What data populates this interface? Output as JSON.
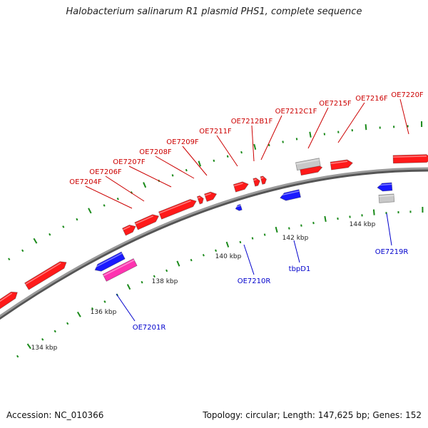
{
  "title": "Halobacterium salinarum R1 plasmid PHS1, complete sequence",
  "footer": {
    "accession": "Accession: NC_010366",
    "summary": "Topology: circular; Length: 147,625 bp; Genes: 152"
  },
  "colors": {
    "forward_gene": "#ff1a1a",
    "reverse_gene": "#1a1aff",
    "pseudo_gene": "#c8c8c8",
    "rna_gene": "#ff33b0",
    "backbone": "#888888",
    "tick": "#1a8a1a",
    "forward_label": "#cc0000",
    "reverse_label": "#0000cc"
  },
  "ruler_labels": [
    "134 kbp",
    "136 kbp",
    "138 kbp",
    "140 kbp",
    "142 kbp",
    "144 kbp"
  ],
  "forward_labels": [
    "OE7204F",
    "OE7206F",
    "OE7207F",
    "OE7208F",
    "OE7209F",
    "OE7211F",
    "OE7212B1F",
    "OE7212C1F",
    "OE7215F",
    "OE7216F",
    "OE7220F"
  ],
  "reverse_labels": [
    "OE7201R",
    "OE7210R",
    "tbpD1",
    "OE7219R"
  ]
}
